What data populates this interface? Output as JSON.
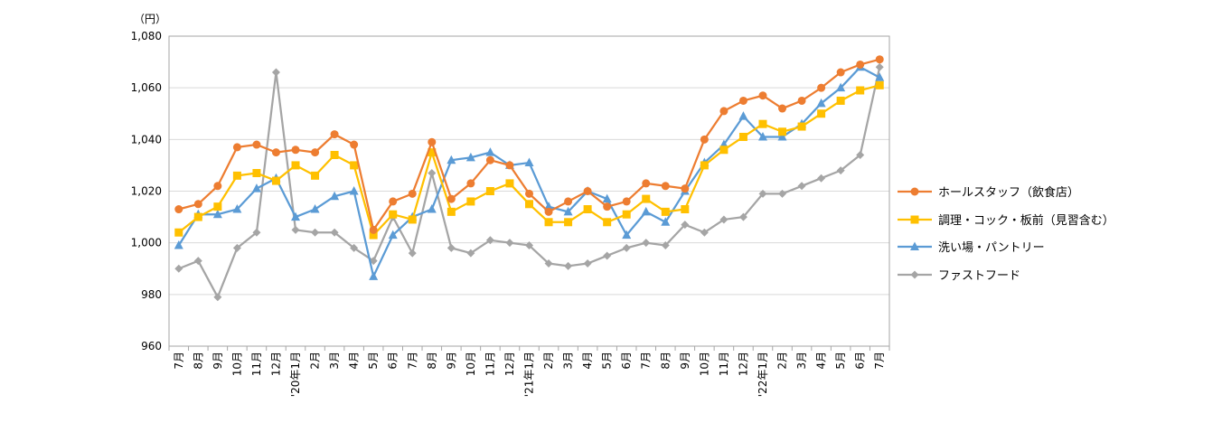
{
  "chart_data": {
    "type": "line",
    "unit_label": "（円）",
    "ylim": [
      960,
      1080
    ],
    "ytick_values": [
      960,
      980,
      1000,
      1020,
      1040,
      1060,
      1080
    ],
    "ytick_labels": [
      "960",
      "980",
      "1,000",
      "1,020",
      "1,040",
      "1,060",
      "1,080"
    ],
    "grid": "horizontal",
    "legend_position": "right",
    "categories": [
      "7月",
      "8月",
      "9月",
      "10月",
      "11月",
      "12月",
      "'20年1月",
      "2月",
      "3月",
      "4月",
      "5月",
      "6月",
      "7月",
      "8月",
      "9月",
      "10月",
      "11月",
      "12月",
      "'21年1月",
      "2月",
      "3月",
      "4月",
      "5月",
      "6月",
      "7月",
      "8月",
      "9月",
      "10月",
      "11月",
      "12月",
      "'22年1月",
      "2月",
      "3月",
      "4月",
      "5月",
      "6月",
      "7月"
    ],
    "series": [
      {
        "name": "ホールスタッフ（飲食店）",
        "color": "#ED7D31",
        "marker": "circle",
        "values": [
          1013,
          1015,
          1022,
          1037,
          1038,
          1035,
          1036,
          1035,
          1042,
          1038,
          1005,
          1016,
          1019,
          1039,
          1017,
          1023,
          1032,
          1030,
          1019,
          1012,
          1016,
          1020,
          1014,
          1016,
          1023,
          1022,
          1021,
          1040,
          1051,
          1055,
          1057,
          1052,
          1055,
          1060,
          1066,
          1069,
          1071
        ]
      },
      {
        "name": "調理・コック・板前（見習含む）",
        "color": "#FFC000",
        "marker": "square",
        "values": [
          1004,
          1010,
          1014,
          1026,
          1027,
          1024,
          1030,
          1026,
          1034,
          1030,
          1003,
          1011,
          1009,
          1035,
          1012,
          1016,
          1020,
          1023,
          1015,
          1008,
          1008,
          1013,
          1008,
          1011,
          1017,
          1012,
          1013,
          1030,
          1036,
          1041,
          1046,
          1043,
          1045,
          1050,
          1055,
          1059,
          1061
        ]
      },
      {
        "name": "洗い場・パントリー",
        "color": "#5B9BD5",
        "marker": "triangle",
        "values": [
          999,
          1011,
          1011,
          1013,
          1021,
          1025,
          1010,
          1013,
          1018,
          1020,
          987,
          1003,
          1010,
          1013,
          1032,
          1033,
          1035,
          1030,
          1031,
          1014,
          1012,
          1020,
          1017,
          1003,
          1012,
          1008,
          1020,
          1031,
          1038,
          1049,
          1041,
          1041,
          1046,
          1054,
          1060,
          1068,
          1064
        ]
      },
      {
        "name": "ファストフード",
        "color": "#A5A5A5",
        "marker": "diamond",
        "values": [
          990,
          993,
          979,
          998,
          1004,
          1066,
          1005,
          1004,
          1004,
          998,
          993,
          1010,
          996,
          1027,
          998,
          996,
          1001,
          1000,
          999,
          992,
          991,
          992,
          995,
          998,
          1000,
          999,
          1007,
          1004,
          1009,
          1010,
          1019,
          1019,
          1022,
          1025,
          1028,
          1034,
          1068
        ]
      }
    ]
  }
}
